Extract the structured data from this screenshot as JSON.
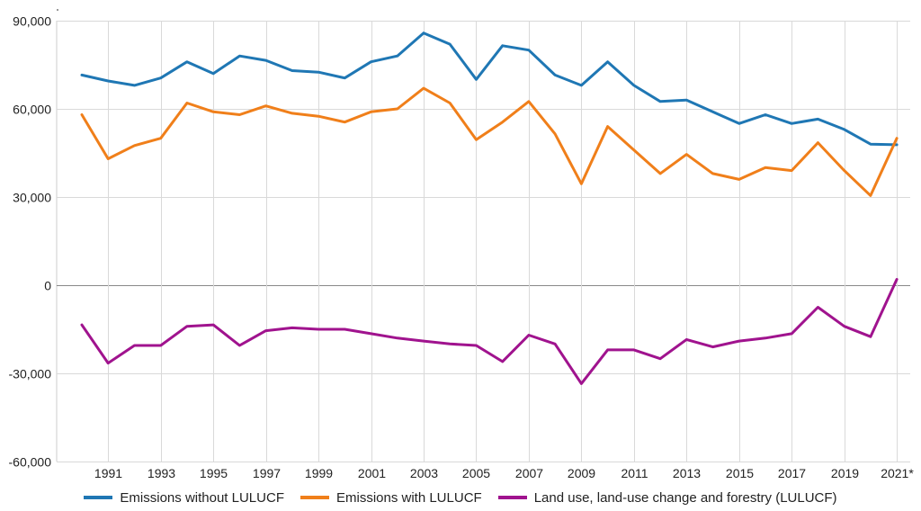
{
  "chart_data": {
    "type": "line",
    "title": "",
    "xlabel": "",
    "ylabel": "",
    "x": [
      "1990",
      "1991",
      "1992",
      "1993",
      "1994",
      "1995",
      "1996",
      "1997",
      "1998",
      "1999",
      "2000",
      "2001",
      "2002",
      "2003",
      "2004",
      "2005",
      "2006",
      "2007",
      "2008",
      "2009",
      "2010",
      "2011",
      "2012",
      "2013",
      "2014",
      "2015",
      "2016",
      "2017",
      "2018",
      "2019",
      "2020",
      "2021*"
    ],
    "x_tick_labels": [
      "1991",
      "1993",
      "1995",
      "1997",
      "1999",
      "2001",
      "2003",
      "2005",
      "2007",
      "2009",
      "2011",
      "2013",
      "2015",
      "2017",
      "2019",
      "2021*"
    ],
    "y_ticks": [
      90000,
      60000,
      30000,
      0,
      -30000,
      -60000
    ],
    "y_tick_labels": [
      "90,000",
      "60,000",
      "30,000",
      "0",
      "-30,000",
      "-60,000"
    ],
    "ylim": [
      -60000,
      90000
    ],
    "grid": true,
    "legend_position": "bottom",
    "series": [
      {
        "name": "Emissions without LULUCF",
        "color": "#1f77b4",
        "values": [
          71500,
          69500,
          68000,
          70500,
          76000,
          72000,
          78000,
          76500,
          73000,
          72500,
          70500,
          76000,
          78000,
          85800,
          82000,
          70000,
          81500,
          80000,
          71500,
          68000,
          76000,
          68000,
          62500,
          63000,
          59000,
          55000,
          58000,
          55000,
          56500,
          53000,
          48000,
          47800
        ]
      },
      {
        "name": "Emissions with LULUCF",
        "color": "#f07f1a",
        "values": [
          58000,
          43000,
          47500,
          50000,
          62000,
          59000,
          58000,
          61000,
          58500,
          57500,
          55500,
          59000,
          60000,
          67000,
          62000,
          49500,
          55500,
          62500,
          51500,
          34500,
          54000,
          46000,
          38000,
          44500,
          38000,
          36000,
          40000,
          39000,
          48500,
          39000,
          30500,
          50000
        ]
      },
      {
        "name": "Land use, land-use change and forestry (LULUCF)",
        "color": "#a0138e",
        "values": [
          -13500,
          -26500,
          -20500,
          -20500,
          -14000,
          -13500,
          -20500,
          -15500,
          -14500,
          -15000,
          -15000,
          -16500,
          -18000,
          -19000,
          -20000,
          -20500,
          -26000,
          -17000,
          -20000,
          -33500,
          -22000,
          -22000,
          -25000,
          -18500,
          -21000,
          -19000,
          -18000,
          -16500,
          -7500,
          -14000,
          -17500,
          2000
        ]
      }
    ]
  }
}
